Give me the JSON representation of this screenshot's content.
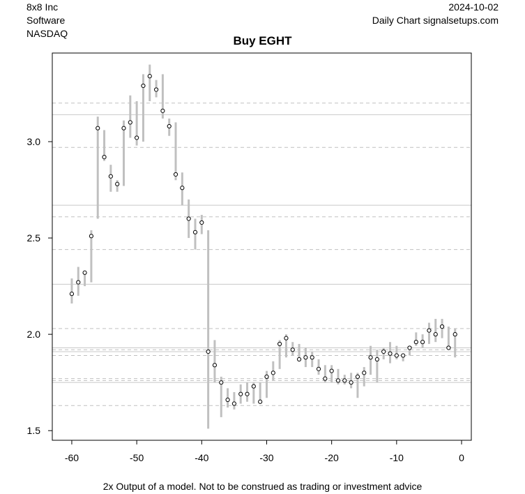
{
  "header": {
    "company": "8x8 Inc",
    "sector": "Software",
    "exchange": "NASDAQ",
    "date": "2024-10-02",
    "source": "Daily Chart signalsetups.com"
  },
  "footer": "2x Output of a model. Not to be construed as trading or investment advice",
  "colors": {
    "range_bar": "#c0c0c0",
    "solid_line": "#c8c8c8",
    "dashed_line": "#c0c0c0",
    "point_fill": "#ffffff",
    "point_stroke": "#000000"
  },
  "chart_data": {
    "type": "range-bar",
    "title": "Buy EGHT",
    "xlabel": "",
    "ylabel": "",
    "xlim": [
      -63,
      1.5
    ],
    "ylim": [
      1.45,
      3.46
    ],
    "x_ticks": [
      -60,
      -50,
      -40,
      -30,
      -20,
      -10,
      0
    ],
    "y_ticks": [
      1.5,
      2.0,
      2.5,
      3.0
    ],
    "y_tick_labels": [
      "1.5",
      "2.0",
      "2.5",
      "3.0"
    ],
    "grid": false,
    "horizontal_solid_lines": [
      3.14,
      2.67,
      2.26,
      1.93,
      1.91,
      1.75
    ],
    "horizontal_dashed_lines": [
      3.2,
      2.97,
      2.61,
      2.44,
      2.03,
      1.92,
      1.89,
      1.77,
      1.76,
      1.63
    ],
    "series": [
      {
        "x": [
          -60,
          -59,
          -58,
          -57,
          -56,
          -55,
          -54,
          -53,
          -52,
          -51,
          -50,
          -49,
          -48,
          -47,
          -46,
          -45,
          -44,
          -43,
          -42,
          -41,
          -40,
          -39,
          -38,
          -37,
          -36,
          -35,
          -34,
          -33,
          -32,
          -31,
          -30,
          -29,
          -28,
          -27,
          -26,
          -25,
          -24,
          -23,
          -22,
          -21,
          -20,
          -19,
          -18,
          -17,
          -16,
          -15,
          -14,
          -13,
          -12,
          -11,
          -10,
          -9,
          -8,
          -7,
          -6,
          -5,
          -4,
          -3,
          -2,
          -1
        ],
        "close": [
          2.21,
          2.27,
          2.32,
          2.51,
          3.07,
          2.92,
          2.82,
          2.78,
          3.07,
          3.1,
          3.02,
          3.29,
          3.34,
          3.27,
          3.16,
          3.08,
          2.83,
          2.76,
          2.6,
          2.53,
          2.58,
          1.91,
          1.84,
          1.75,
          1.66,
          1.64,
          1.69,
          1.69,
          1.73,
          1.65,
          1.78,
          1.8,
          1.95,
          1.98,
          1.92,
          1.87,
          1.88,
          1.88,
          1.82,
          1.77,
          1.81,
          1.76,
          1.76,
          1.75,
          1.78,
          1.8,
          1.88,
          1.87,
          1.91,
          1.9,
          1.89,
          1.89,
          1.93,
          1.96,
          1.96,
          2.02,
          2.0,
          2.04,
          1.93,
          2.0
        ],
        "high": [
          2.29,
          2.35,
          2.33,
          2.54,
          3.13,
          3.06,
          2.88,
          2.8,
          3.11,
          3.24,
          3.21,
          3.35,
          3.4,
          3.32,
          3.35,
          3.12,
          3.1,
          2.84,
          2.7,
          2.6,
          2.62,
          2.54,
          1.97,
          1.78,
          1.72,
          1.7,
          1.74,
          1.75,
          1.75,
          1.75,
          1.81,
          1.86,
          1.97,
          2.0,
          1.96,
          1.95,
          1.93,
          1.91,
          1.87,
          1.84,
          1.84,
          1.82,
          1.79,
          1.8,
          1.8,
          1.83,
          1.94,
          1.92,
          1.93,
          1.96,
          1.94,
          1.9,
          1.94,
          2.01,
          2.0,
          2.06,
          2.08,
          2.08,
          2.04,
          2.03
        ],
        "low": [
          2.16,
          2.2,
          2.25,
          2.27,
          2.6,
          2.9,
          2.74,
          2.74,
          2.77,
          3.02,
          2.98,
          3.0,
          3.21,
          3.23,
          3.12,
          3.03,
          2.8,
          2.67,
          2.5,
          2.44,
          2.52,
          1.51,
          1.75,
          1.57,
          1.62,
          1.61,
          1.64,
          1.65,
          1.64,
          1.64,
          1.67,
          1.76,
          1.82,
          1.88,
          1.89,
          1.86,
          1.83,
          1.83,
          1.79,
          1.75,
          1.75,
          1.74,
          1.74,
          1.72,
          1.67,
          1.73,
          1.79,
          1.75,
          1.87,
          1.85,
          1.87,
          1.86,
          1.89,
          1.94,
          1.93,
          1.95,
          1.96,
          1.98,
          1.92,
          1.88
        ]
      }
    ]
  }
}
